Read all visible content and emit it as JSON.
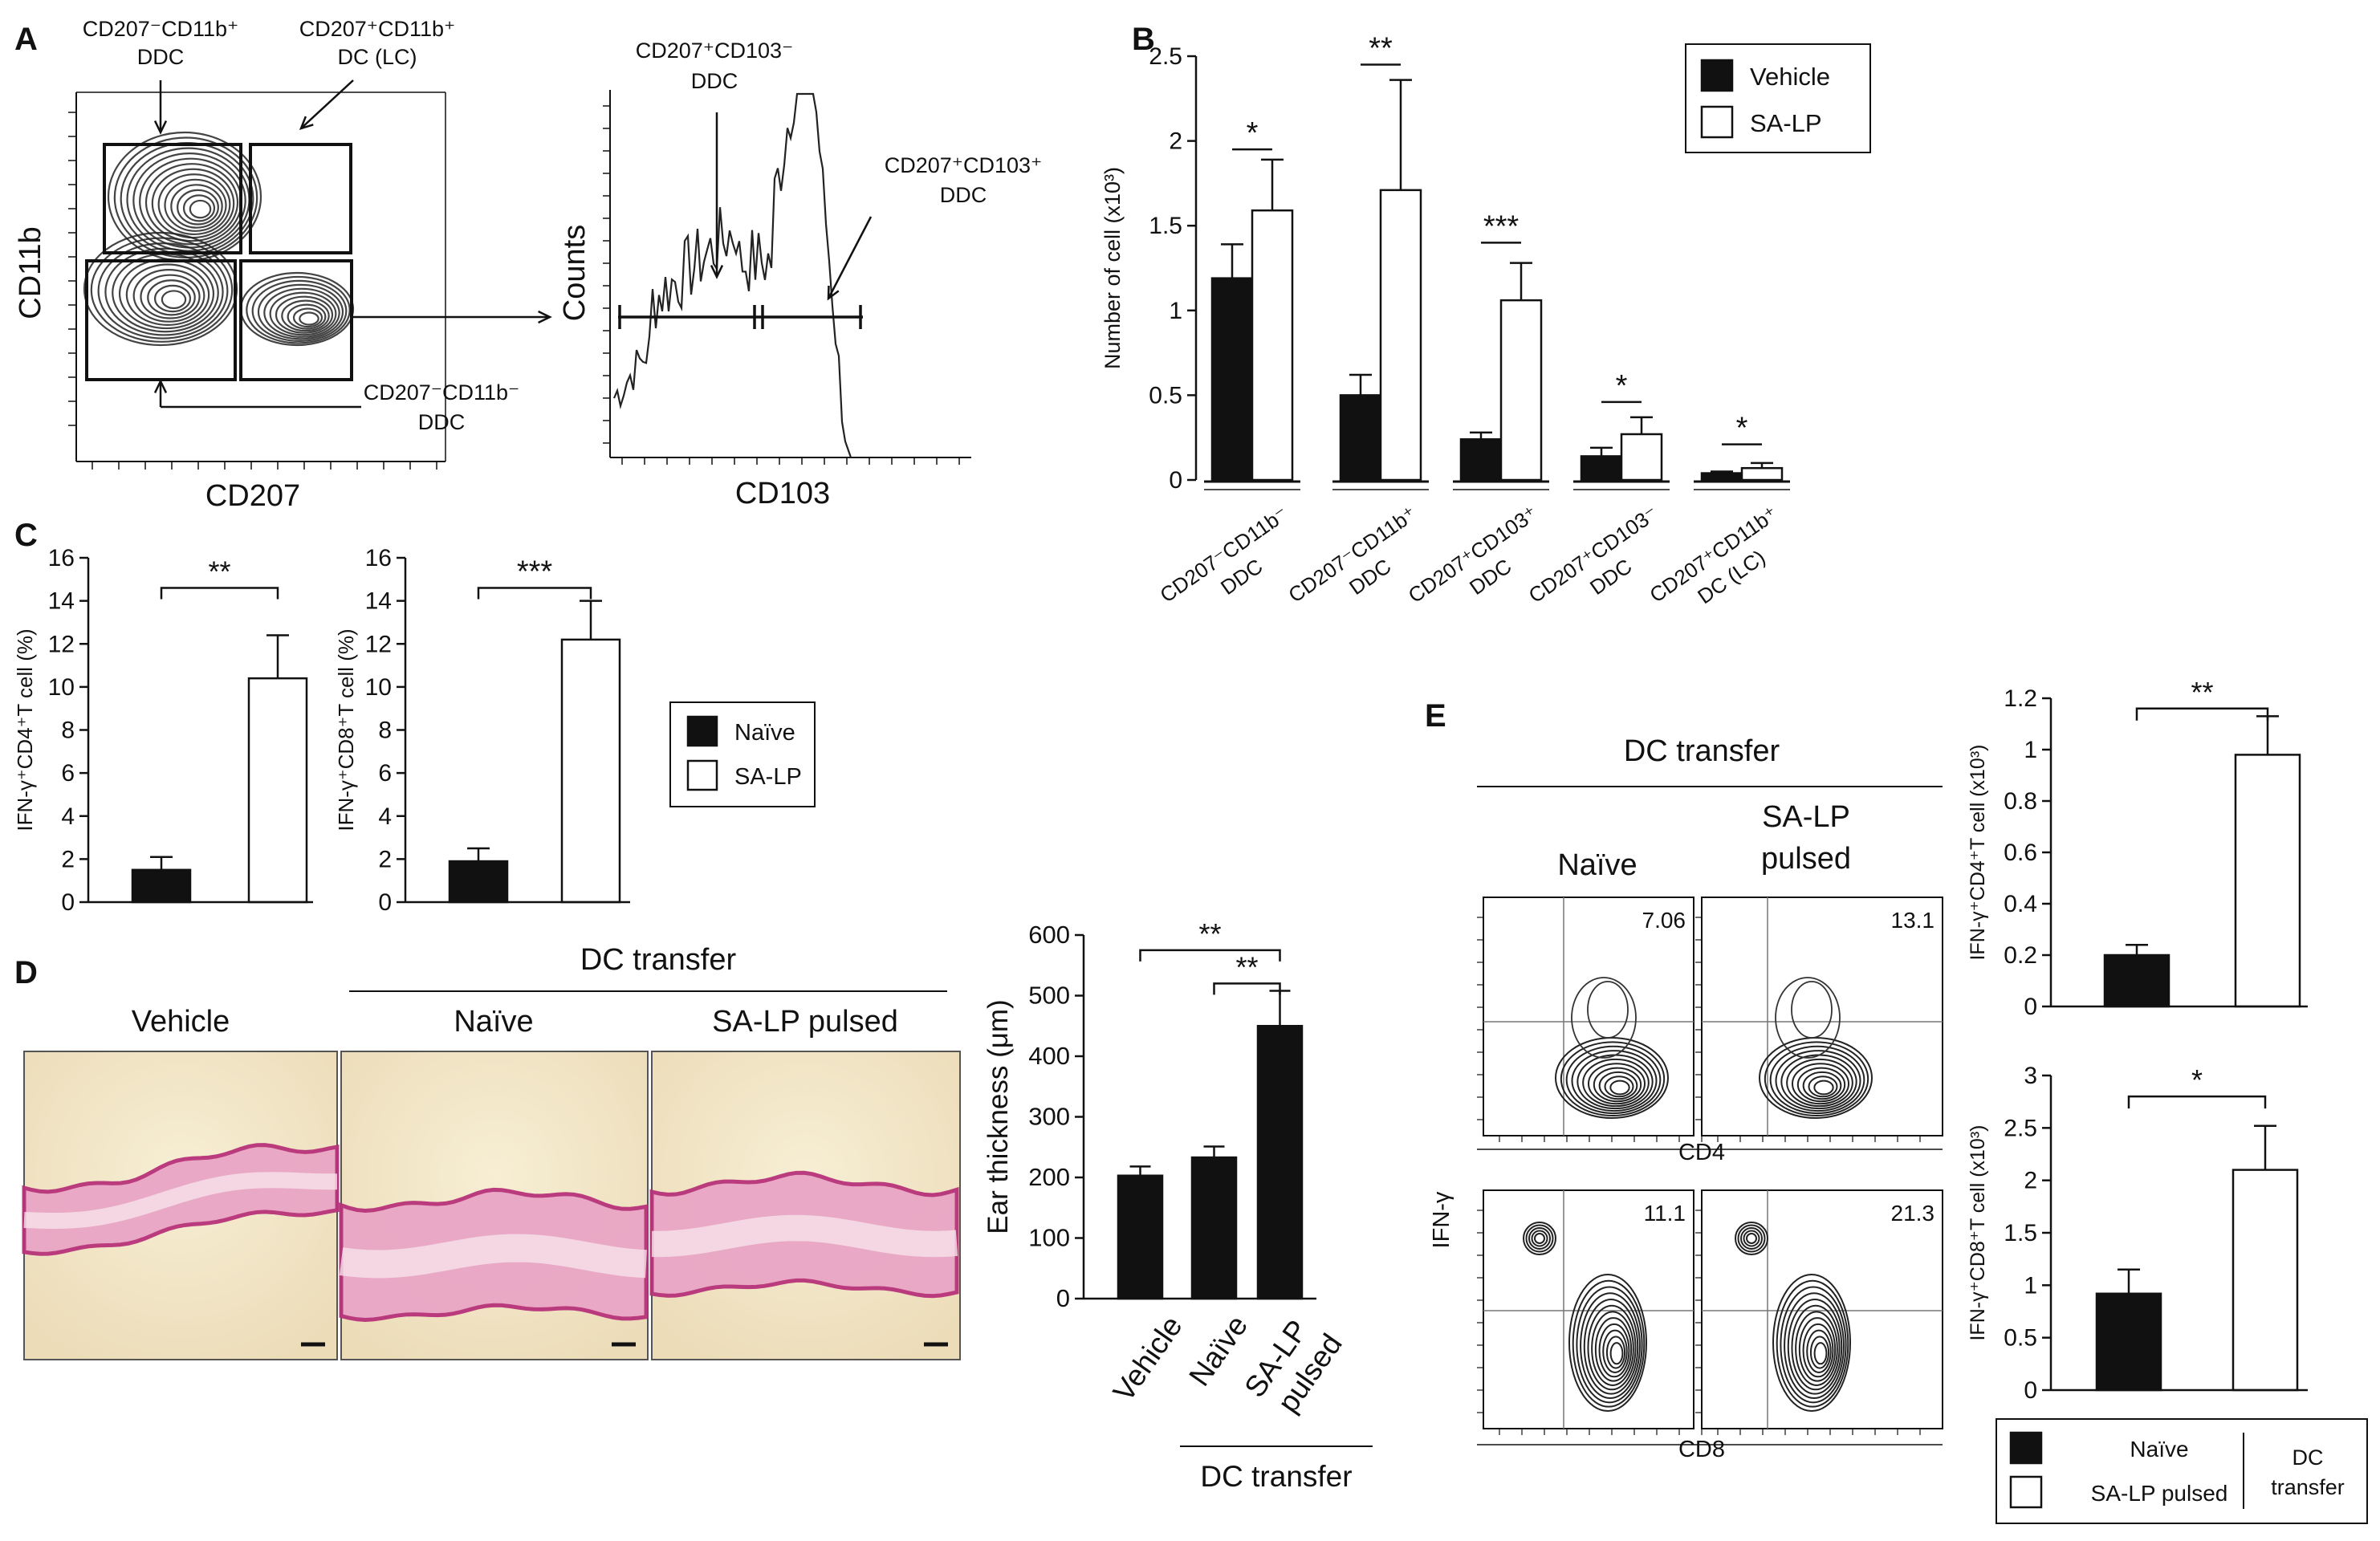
{
  "panels": {
    "a": "A",
    "b": "B",
    "c": "C",
    "d": "D",
    "e": "E"
  },
  "panelA": {
    "gate_cd207n_cd11bp": [
      "CD207⁻CD11b⁺",
      "DDC"
    ],
    "gate_lc": [
      "CD207⁺CD11b⁺",
      "DC (LC)"
    ],
    "gate_cd207n_cd11bn": [
      "CD207⁻CD11b⁻",
      "DDC"
    ],
    "gate_cd103n": [
      "CD207⁺CD103⁻",
      "DDC"
    ],
    "gate_cd103p": [
      "CD207⁺CD103⁺",
      "DDC"
    ],
    "xlabel_contour": "CD207",
    "ylabel_contour": "CD11b",
    "xlabel_hist": "CD103",
    "ylabel_hist": "Counts"
  },
  "panelD": {
    "header": "DC transfer",
    "img_labels": [
      "Vehicle",
      "Naïve",
      "SA-LP pulsed"
    ]
  },
  "panelE": {
    "header": "DC transfer",
    "col_labels": [
      [
        "Naïve"
      ],
      [
        "SA-LP",
        "pulsed"
      ]
    ],
    "ylabel": "IFN-γ",
    "xlabel_top": "CD4",
    "xlabel_bottom": "CD8",
    "percents": [
      "7.06",
      "13.1",
      "11.1",
      "21.3"
    ],
    "legend": {
      "items": [
        "Naïve",
        "SA-LP pulsed"
      ],
      "group": [
        "DC",
        "transfer"
      ]
    }
  },
  "chart_data": [
    {
      "id": "B",
      "type": "bar",
      "ylabel": "Number of cell (x10³)",
      "ylim": [
        0,
        2.5
      ],
      "yticks": [
        0,
        0.5,
        1,
        1.5,
        2,
        2.5
      ],
      "yticklabels": [
        "0",
        "0.5",
        "1",
        "1.5",
        "2",
        "2.5"
      ],
      "categories": [
        [
          "CD207⁻CD11b⁻",
          "DDC"
        ],
        [
          "CD207⁻CD11b⁺",
          "DDC"
        ],
        [
          "CD207⁺CD103⁺",
          "DDC"
        ],
        [
          "CD207⁺CD103⁻",
          "DDC"
        ],
        [
          "CD207⁺CD11b⁺",
          "DC (LC)"
        ]
      ],
      "series": [
        {
          "name": "Vehicle",
          "fill": "#111111",
          "values": [
            1.19,
            0.5,
            0.24,
            0.14,
            0.04
          ],
          "errors": [
            0.2,
            0.12,
            0.04,
            0.05,
            0.01
          ]
        },
        {
          "name": "SA-LP",
          "fill": "#ffffff",
          "values": [
            1.59,
            1.71,
            1.06,
            0.27,
            0.07
          ],
          "errors": [
            0.3,
            0.65,
            0.22,
            0.1,
            0.03
          ]
        }
      ],
      "significance": [
        "*",
        "**",
        "***",
        "*",
        "*"
      ]
    },
    {
      "id": "C1",
      "type": "bar",
      "ylabel": "IFN-γ⁺CD4⁺T cell (%)",
      "ylim": [
        0,
        16
      ],
      "yticks": [
        0,
        2,
        4,
        6,
        8,
        10,
        12,
        14,
        16
      ],
      "yticklabels": [
        "0",
        "2",
        "4",
        "6",
        "8",
        "10",
        "12",
        "14",
        "16"
      ],
      "categories": [
        "Naïve",
        "SA-LP"
      ],
      "values": [
        1.5,
        10.4
      ],
      "errors": [
        0.6,
        2.0
      ],
      "fills": [
        "#111111",
        "#ffffff"
      ],
      "significance": "**"
    },
    {
      "id": "C2",
      "type": "bar",
      "ylabel": "IFN-γ⁺CD8⁺T cell (%)",
      "ylim": [
        0,
        16
      ],
      "yticks": [
        0,
        2,
        4,
        6,
        8,
        10,
        12,
        14,
        16
      ],
      "yticklabels": [
        "0",
        "2",
        "4",
        "6",
        "8",
        "10",
        "12",
        "14",
        "16"
      ],
      "categories": [
        "Naïve",
        "SA-LP"
      ],
      "values": [
        1.9,
        12.2
      ],
      "errors": [
        0.6,
        1.8
      ],
      "fills": [
        "#111111",
        "#ffffff"
      ],
      "significance": "***",
      "legend": [
        "Naïve",
        "SA-LP"
      ]
    },
    {
      "id": "D",
      "type": "bar",
      "ylabel": "Ear thickness (μm)",
      "ylim": [
        0,
        600
      ],
      "yticks": [
        0,
        100,
        200,
        300,
        400,
        500,
        600
      ],
      "yticklabels": [
        "0",
        "100",
        "200",
        "300",
        "400",
        "500",
        "600"
      ],
      "categories": [
        "Vehicle",
        "Naïve",
        [
          "SA-LP",
          "pulsed"
        ]
      ],
      "values": [
        203,
        233,
        450
      ],
      "errors": [
        15,
        18,
        58
      ],
      "fills": [
        "#111111",
        "#111111",
        "#111111"
      ],
      "group_label": "DC transfer",
      "significance": [
        "**",
        "**"
      ]
    },
    {
      "id": "E1",
      "type": "bar",
      "ylabel": "IFN-γ⁺CD4⁺T cell (x10³)",
      "ylim": [
        0,
        1.2
      ],
      "yticks": [
        0,
        0.2,
        0.4,
        0.6,
        0.8,
        1,
        1.2
      ],
      "yticklabels": [
        "0",
        "0.2",
        "0.4",
        "0.6",
        "0.8",
        "1",
        "1.2"
      ],
      "categories": [
        "Naïve",
        "SA-LP pulsed"
      ],
      "values": [
        0.2,
        0.98
      ],
      "errors": [
        0.04,
        0.15
      ],
      "fills": [
        "#111111",
        "#ffffff"
      ],
      "significance": "**"
    },
    {
      "id": "E2",
      "type": "bar",
      "ylabel": "IFN-γ⁺CD8⁺T cell (x10³)",
      "ylim": [
        0,
        3
      ],
      "yticks": [
        0,
        0.5,
        1,
        1.5,
        2,
        2.5,
        3
      ],
      "yticklabels": [
        "0",
        "0.5",
        "1",
        "1.5",
        "2",
        "2.5",
        "3"
      ],
      "categories": [
        "Naïve",
        "SA-LP pulsed"
      ],
      "values": [
        0.92,
        2.1
      ],
      "errors": [
        0.23,
        0.42
      ],
      "fills": [
        "#111111",
        "#ffffff"
      ],
      "significance": "*"
    }
  ]
}
